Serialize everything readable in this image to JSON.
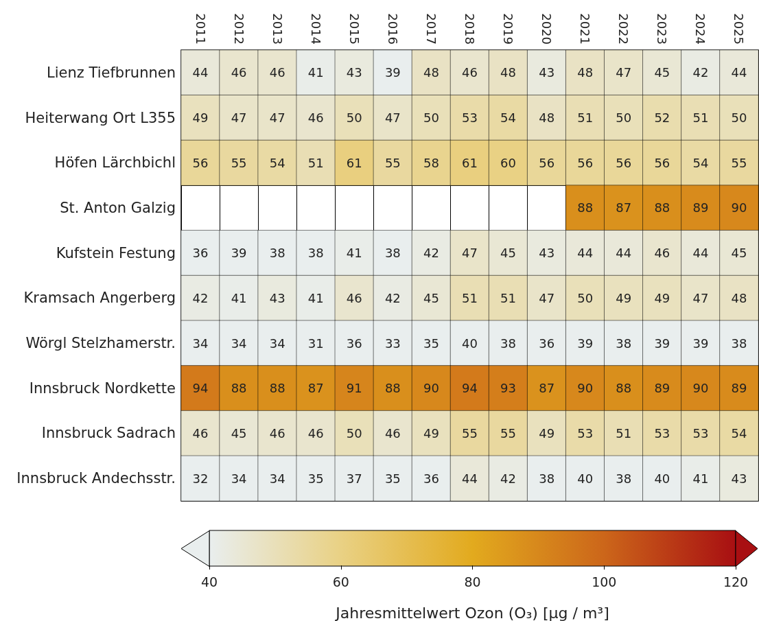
{
  "chart_data": {
    "type": "heatmap",
    "categories": [
      "2011",
      "2012",
      "2013",
      "2014",
      "2015",
      "2016",
      "2017",
      "2018",
      "2019",
      "2020",
      "2021",
      "2022",
      "2023",
      "2024",
      "2025"
    ],
    "y_categories": [
      "Lienz Tiefbrunnen",
      "Heiterwang Ort L355",
      "Höfen Lärchbichl",
      "St. Anton Galzig",
      "Kufstein Festung",
      "Kramsach Angerberg",
      "Wörgl Stelzhamerstr.",
      "Innsbruck Nordkette",
      "Innsbruck Sadrach",
      "Innsbruck Andechsstr."
    ],
    "cells": [
      [
        44,
        46,
        46,
        41,
        43,
        39,
        48,
        46,
        48,
        43,
        48,
        47,
        45,
        42,
        44
      ],
      [
        49,
        47,
        47,
        46,
        50,
        47,
        50,
        53,
        54,
        48,
        51,
        50,
        52,
        51,
        50
      ],
      [
        56,
        55,
        54,
        51,
        61,
        55,
        58,
        61,
        60,
        56,
        56,
        56,
        56,
        54,
        55
      ],
      [
        null,
        null,
        null,
        null,
        null,
        null,
        null,
        null,
        null,
        null,
        88,
        87,
        88,
        89,
        90
      ],
      [
        36,
        39,
        38,
        38,
        41,
        38,
        42,
        47,
        45,
        43,
        44,
        44,
        46,
        44,
        45
      ],
      [
        42,
        41,
        43,
        41,
        46,
        42,
        45,
        51,
        51,
        47,
        50,
        49,
        49,
        47,
        48
      ],
      [
        34,
        34,
        34,
        31,
        36,
        33,
        35,
        40,
        38,
        36,
        39,
        38,
        39,
        39,
        38
      ],
      [
        94,
        88,
        88,
        87,
        91,
        88,
        90,
        94,
        93,
        87,
        90,
        88,
        89,
        90,
        89
      ],
      [
        46,
        45,
        46,
        46,
        50,
        46,
        49,
        55,
        55,
        49,
        53,
        51,
        53,
        53,
        54
      ],
      [
        32,
        34,
        34,
        35,
        37,
        35,
        36,
        44,
        42,
        38,
        40,
        38,
        40,
        41,
        43
      ]
    ],
    "clim": [
      40,
      120
    ],
    "cticks": [
      40,
      60,
      80,
      100,
      120
    ],
    "clabel": "Jahresmittelwert Ozon (O₃) [µg / m³]",
    "data_labels": true
  }
}
